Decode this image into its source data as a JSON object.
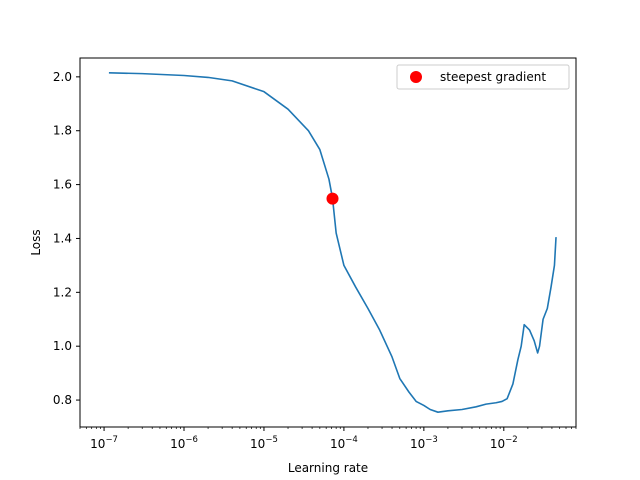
{
  "chart_data": {
    "type": "line",
    "xlabel": "Learning rate",
    "ylabel": "Loss",
    "xscale": "log",
    "xlim": [
      5e-08,
      0.08
    ],
    "ylim": [
      0.7,
      2.07
    ],
    "x_ticks": [
      {
        "value": 1e-07,
        "base": "10",
        "exp": "−7"
      },
      {
        "value": 1e-06,
        "base": "10",
        "exp": "−6"
      },
      {
        "value": 1e-05,
        "base": "10",
        "exp": "−5"
      },
      {
        "value": 0.0001,
        "base": "10",
        "exp": "−4"
      },
      {
        "value": 0.001,
        "base": "10",
        "exp": "−3"
      },
      {
        "value": 0.01,
        "base": "10",
        "exp": "−2"
      }
    ],
    "y_ticks": [
      {
        "value": 0.8,
        "label": "0.8"
      },
      {
        "value": 1.0,
        "label": "1.0"
      },
      {
        "value": 1.2,
        "label": "1.2"
      },
      {
        "value": 1.4,
        "label": "1.4"
      },
      {
        "value": 1.6,
        "label": "1.6"
      },
      {
        "value": 1.8,
        "label": "1.8"
      },
      {
        "value": 2.0,
        "label": "2.0"
      }
    ],
    "grid": false,
    "legend_position": "top-right",
    "series": [
      {
        "color": "#1f77b4",
        "x": [
          1.15e-07,
          3e-07,
          1e-06,
          2e-06,
          4e-06,
          1e-05,
          2e-05,
          3.6e-05,
          5e-05,
          6.5e-05,
          7.2e-05,
          8e-05,
          0.0001,
          0.00014,
          0.0002,
          0.00028,
          0.0004,
          0.0005,
          0.00065,
          0.0008,
          0.001,
          0.0012,
          0.0015,
          0.002,
          0.003,
          0.0045,
          0.006,
          0.008,
          0.0095,
          0.011,
          0.013,
          0.015,
          0.0165,
          0.018,
          0.021,
          0.024,
          0.0265,
          0.028,
          0.031,
          0.035,
          0.039,
          0.043,
          0.045
        ],
        "y": [
          2.015,
          2.012,
          2.005,
          1.998,
          1.985,
          1.945,
          1.88,
          1.8,
          1.73,
          1.62,
          1.55,
          1.42,
          1.3,
          1.22,
          1.14,
          1.06,
          0.96,
          0.88,
          0.83,
          0.795,
          0.78,
          0.765,
          0.755,
          0.76,
          0.765,
          0.775,
          0.785,
          0.79,
          0.795,
          0.805,
          0.86,
          0.95,
          1.0,
          1.08,
          1.06,
          1.02,
          0.975,
          1.0,
          1.1,
          1.14,
          1.22,
          1.3,
          1.405
        ]
      },
      {
        "name": "steepest gradient",
        "type": "scatter",
        "color": "#ff0000",
        "x": [
          7.2e-05
        ],
        "y": [
          1.548
        ]
      }
    ]
  }
}
